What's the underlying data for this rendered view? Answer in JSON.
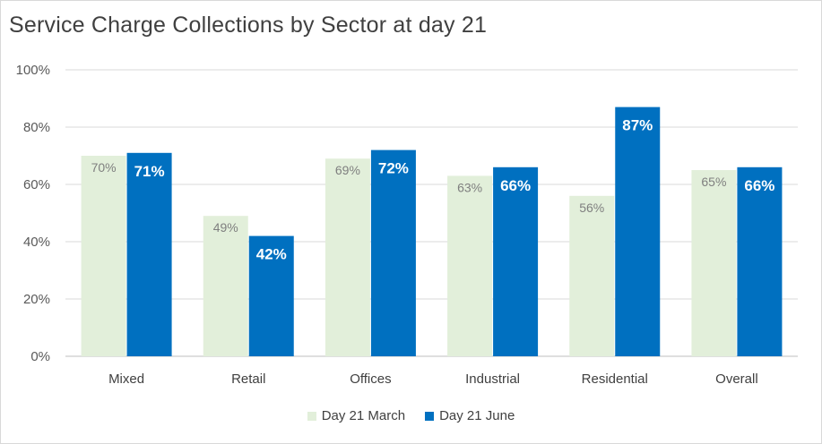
{
  "chart_data": {
    "type": "bar",
    "title": "Service Charge Collections by Sector at day 21",
    "categories": [
      "Mixed",
      "Retail",
      "Offices",
      "Industrial",
      "Residential",
      "Overall"
    ],
    "series": [
      {
        "name": "Day 21 March",
        "values": [
          70,
          49,
          69,
          63,
          56,
          65
        ],
        "labels": [
          "70%",
          "49%",
          "69%",
          "63%",
          "56%",
          "65%"
        ],
        "color": "#e2efda"
      },
      {
        "name": "Day 21 June",
        "values": [
          71,
          42,
          72,
          66,
          87,
          66
        ],
        "labels": [
          "71%",
          "42%",
          "72%",
          "66%",
          "87%",
          "66%"
        ],
        "color": "#0070c0"
      }
    ],
    "ylim": [
      0,
      100
    ],
    "yticks": [
      "0%",
      "20%",
      "40%",
      "60%",
      "80%",
      "100%"
    ],
    "xlabel": "",
    "ylabel": "",
    "grid": true,
    "legend_position": "bottom"
  }
}
